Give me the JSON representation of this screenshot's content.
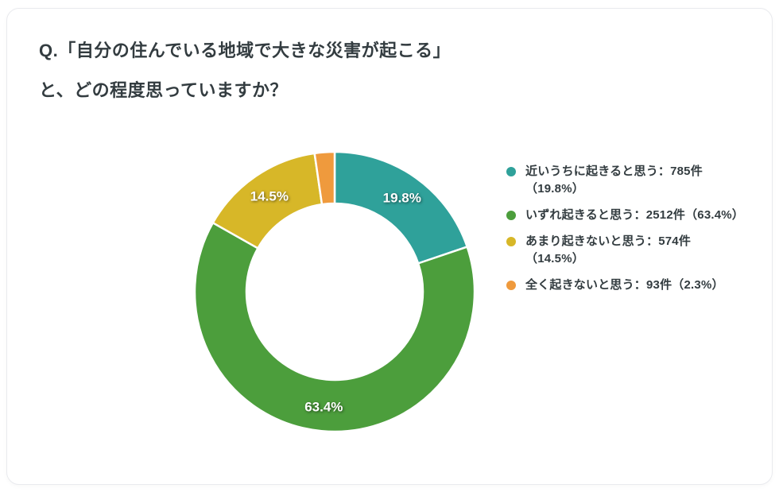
{
  "card": {
    "title_lines": [
      "Q.「自分の住んでいる地域で大きな災害が起こる」",
      "と、どの程度思っていますか？"
    ]
  },
  "chart_data": {
    "type": "pie",
    "donut": true,
    "title": "Q.「自分の住んでいる地域で大きな災害が起こる」と、どの程度思っていますか？",
    "categories": [
      "近いうちに起きると思う",
      "いずれ起きると思う",
      "あまり起きないと思う",
      "全く起きないと思う"
    ],
    "values": [
      785,
      2512,
      574,
      93
    ],
    "unit": "件",
    "percents": [
      19.8,
      63.4,
      14.5,
      2.3
    ],
    "colors": [
      "#2FA19A",
      "#4C9E3C",
      "#D7B728",
      "#EF9A3D"
    ],
    "slice_labels": [
      "19.8%",
      "63.4%",
      "14.5%",
      ""
    ],
    "start_angle_deg": 0,
    "clockwise": true,
    "inner_radius_ratio": 0.63,
    "legend_position": "right",
    "grid": false
  },
  "legend": {
    "items": [
      {
        "color": "#2FA19A",
        "lines": [
          "近いうちに起きると思う：785件",
          "（19.8%）"
        ]
      },
      {
        "color": "#4C9E3C",
        "lines": [
          "いずれ起きると思う：2512件（63.4%）"
        ]
      },
      {
        "color": "#D7B728",
        "lines": [
          "あまり起きないと思う：574件",
          "（14.5%）"
        ]
      },
      {
        "color": "#EF9A3D",
        "lines": [
          "全く起きないと思う：93件（2.3%）"
        ]
      }
    ]
  }
}
